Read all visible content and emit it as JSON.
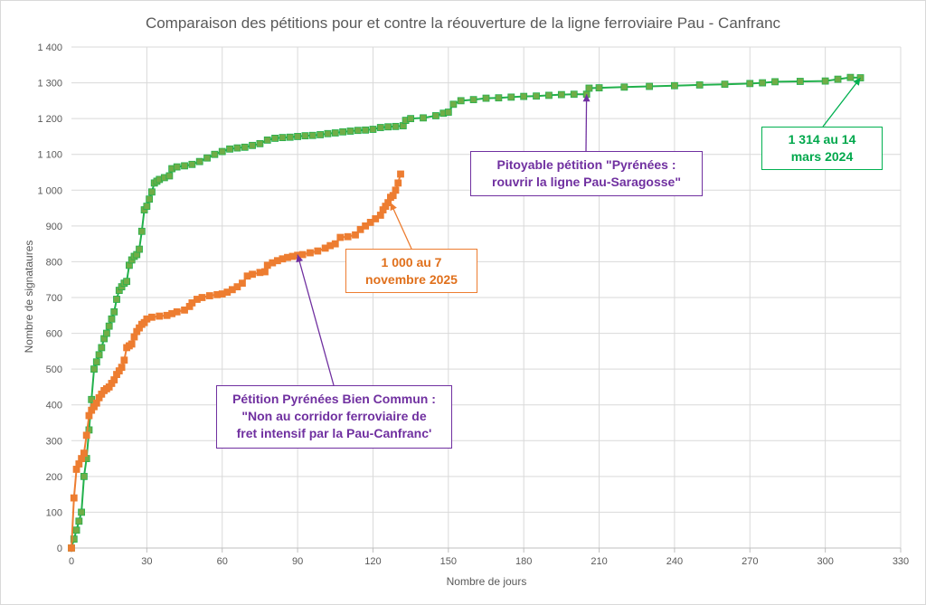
{
  "chart_data": {
    "type": "line",
    "title": "Comparaison des pétitions pour et contre la réouverture de la ligne ferroviaire Pau - Canfranc",
    "xlabel": "Nombre de jours",
    "ylabel": "Nombre de signataures",
    "xlim": [
      0,
      330
    ],
    "ylim": [
      0,
      1400
    ],
    "x_ticks": [
      0,
      30,
      60,
      90,
      120,
      150,
      180,
      210,
      240,
      270,
      300,
      330
    ],
    "y_ticks": [
      0,
      100,
      200,
      300,
      400,
      500,
      600,
      700,
      800,
      900,
      1000,
      1100,
      1200,
      1300,
      1400
    ],
    "y_tick_labels": [
      "0",
      "100",
      "200",
      "300",
      "400",
      "500",
      "600",
      "700",
      "800",
      "900",
      "1 000",
      "1 100",
      "1 200",
      "1 300",
      "1 400"
    ],
    "grid": true,
    "series": [
      {
        "color": "#70ad47",
        "line_color": "#22b14c",
        "points": [
          [
            0,
            0
          ],
          [
            1,
            25
          ],
          [
            2,
            50
          ],
          [
            3,
            75
          ],
          [
            4,
            100
          ],
          [
            5,
            200
          ],
          [
            6,
            250
          ],
          [
            7,
            330
          ],
          [
            8,
            415
          ],
          [
            9,
            500
          ],
          [
            10,
            520
          ],
          [
            11,
            540
          ],
          [
            12,
            560
          ],
          [
            13,
            585
          ],
          [
            14,
            600
          ],
          [
            15,
            620
          ],
          [
            16,
            640
          ],
          [
            17,
            660
          ],
          [
            18,
            695
          ],
          [
            19,
            720
          ],
          [
            20,
            730
          ],
          [
            21,
            740
          ],
          [
            22,
            745
          ],
          [
            23,
            790
          ],
          [
            24,
            805
          ],
          [
            25,
            815
          ],
          [
            26,
            820
          ],
          [
            27,
            835
          ],
          [
            28,
            885
          ],
          [
            29,
            945
          ],
          [
            30,
            955
          ],
          [
            31,
            975
          ],
          [
            32,
            995
          ],
          [
            33,
            1020
          ],
          [
            34,
            1025
          ],
          [
            35,
            1030
          ],
          [
            37,
            1035
          ],
          [
            39,
            1040
          ],
          [
            40,
            1060
          ],
          [
            42,
            1065
          ],
          [
            45,
            1068
          ],
          [
            48,
            1072
          ],
          [
            51,
            1080
          ],
          [
            54,
            1090
          ],
          [
            57,
            1100
          ],
          [
            60,
            1108
          ],
          [
            63,
            1115
          ],
          [
            66,
            1118
          ],
          [
            69,
            1120
          ],
          [
            72,
            1125
          ],
          [
            75,
            1130
          ],
          [
            78,
            1140
          ],
          [
            81,
            1145
          ],
          [
            84,
            1147
          ],
          [
            87,
            1148
          ],
          [
            90,
            1150
          ],
          [
            93,
            1152
          ],
          [
            96,
            1153
          ],
          [
            99,
            1155
          ],
          [
            102,
            1158
          ],
          [
            105,
            1160
          ],
          [
            108,
            1163
          ],
          [
            111,
            1165
          ],
          [
            114,
            1167
          ],
          [
            117,
            1168
          ],
          [
            120,
            1170
          ],
          [
            123,
            1175
          ],
          [
            126,
            1177
          ],
          [
            129,
            1178
          ],
          [
            132,
            1180
          ],
          [
            133,
            1195
          ],
          [
            135,
            1200
          ],
          [
            140,
            1202
          ],
          [
            145,
            1208
          ],
          [
            148,
            1215
          ],
          [
            150,
            1218
          ],
          [
            152,
            1240
          ],
          [
            155,
            1250
          ],
          [
            160,
            1253
          ],
          [
            165,
            1257
          ],
          [
            170,
            1258
          ],
          [
            175,
            1260
          ],
          [
            180,
            1262
          ],
          [
            185,
            1263
          ],
          [
            190,
            1265
          ],
          [
            195,
            1267
          ],
          [
            200,
            1268
          ],
          [
            205,
            1268
          ],
          [
            206,
            1285
          ],
          [
            210,
            1286
          ],
          [
            220,
            1288
          ],
          [
            230,
            1290
          ],
          [
            240,
            1292
          ],
          [
            250,
            1294
          ],
          [
            260,
            1296
          ],
          [
            270,
            1298
          ],
          [
            275,
            1300
          ],
          [
            280,
            1303
          ],
          [
            290,
            1304
          ],
          [
            300,
            1305
          ],
          [
            305,
            1310
          ],
          [
            310,
            1315
          ],
          [
            314,
            1314
          ]
        ]
      },
      {
        "color": "#ed7d31",
        "line_color": "#ed7d31",
        "points": [
          [
            0,
            0
          ],
          [
            1,
            140
          ],
          [
            2,
            220
          ],
          [
            3,
            235
          ],
          [
            4,
            250
          ],
          [
            5,
            265
          ],
          [
            6,
            315
          ],
          [
            7,
            370
          ],
          [
            8,
            385
          ],
          [
            9,
            395
          ],
          [
            10,
            405
          ],
          [
            11,
            420
          ],
          [
            12,
            430
          ],
          [
            13,
            440
          ],
          [
            14,
            445
          ],
          [
            15,
            450
          ],
          [
            16,
            460
          ],
          [
            17,
            470
          ],
          [
            18,
            485
          ],
          [
            19,
            495
          ],
          [
            20,
            505
          ],
          [
            21,
            525
          ],
          [
            22,
            560
          ],
          [
            23,
            565
          ],
          [
            24,
            570
          ],
          [
            25,
            590
          ],
          [
            26,
            605
          ],
          [
            27,
            615
          ],
          [
            28,
            625
          ],
          [
            29,
            630
          ],
          [
            30,
            640
          ],
          [
            32,
            645
          ],
          [
            35,
            648
          ],
          [
            38,
            650
          ],
          [
            40,
            655
          ],
          [
            42,
            660
          ],
          [
            45,
            665
          ],
          [
            47,
            675
          ],
          [
            48,
            685
          ],
          [
            50,
            695
          ],
          [
            52,
            700
          ],
          [
            55,
            705
          ],
          [
            58,
            708
          ],
          [
            60,
            710
          ],
          [
            62,
            715
          ],
          [
            64,
            722
          ],
          [
            66,
            730
          ],
          [
            68,
            740
          ],
          [
            70,
            760
          ],
          [
            72,
            765
          ],
          [
            75,
            770
          ],
          [
            77,
            772
          ],
          [
            78,
            790
          ],
          [
            80,
            797
          ],
          [
            82,
            803
          ],
          [
            84,
            808
          ],
          [
            86,
            812
          ],
          [
            88,
            815
          ],
          [
            90,
            818
          ],
          [
            92,
            820
          ],
          [
            95,
            825
          ],
          [
            98,
            830
          ],
          [
            101,
            838
          ],
          [
            103,
            845
          ],
          [
            105,
            850
          ],
          [
            107,
            868
          ],
          [
            110,
            870
          ],
          [
            113,
            875
          ],
          [
            115,
            890
          ],
          [
            117,
            900
          ],
          [
            119,
            910
          ],
          [
            121,
            920
          ],
          [
            123,
            930
          ],
          [
            124,
            945
          ],
          [
            125,
            955
          ],
          [
            126,
            965
          ],
          [
            127,
            980
          ],
          [
            128,
            985
          ],
          [
            129,
            1000
          ],
          [
            130,
            1020
          ],
          [
            131,
            1045
          ]
        ]
      }
    ],
    "annotations": [
      {
        "lines": [
          "Pitoyable pétition \"Pyrénées :",
          "rouvrir la ligne Pau-Saragosse\""
        ],
        "color": "#7030a0",
        "point": [
          205,
          1268
        ]
      },
      {
        "lines": [
          "1 314 au 14",
          "mars 2024"
        ],
        "color": "#00b050",
        "point": [
          314,
          1314
        ]
      },
      {
        "lines": [
          "1 000 au 7",
          "novembre 2025"
        ],
        "color": "#ed7d31",
        "point": [
          127,
          965
        ]
      },
      {
        "lines": [
          "Pétition Pyrénées Bien Commun :",
          "\"Non au corridor ferroviaire de",
          "fret intensif par la Pau-Canfranc'"
        ],
        "color": "#7030a0",
        "point": [
          90,
          820
        ]
      }
    ]
  }
}
